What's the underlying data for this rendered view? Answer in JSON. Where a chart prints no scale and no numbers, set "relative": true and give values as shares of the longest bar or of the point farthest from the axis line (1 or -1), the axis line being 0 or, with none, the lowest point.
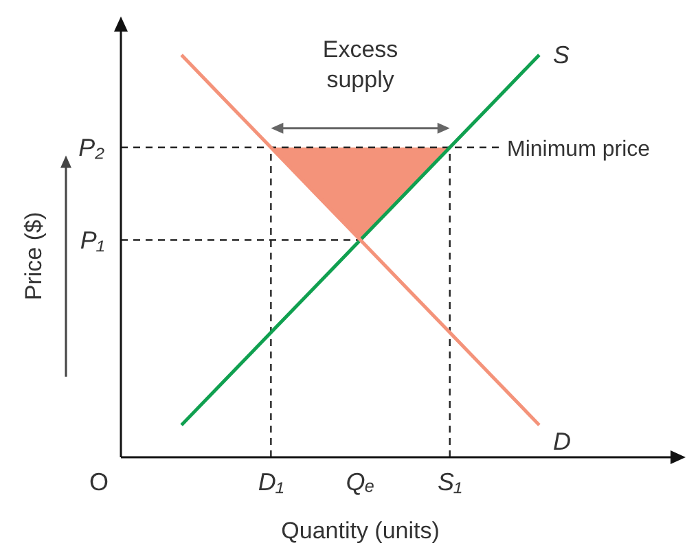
{
  "chart_data": {
    "type": "line",
    "xlabel": "Quantity (units)",
    "ylabel": "Price ($)",
    "relative": true,
    "categories": [
      null,
      null,
      null,
      "D₁",
      null,
      "Qₑ",
      null,
      "S₁",
      null,
      null,
      null,
      null,
      null
    ],
    "series": [
      {
        "name": "S",
        "color": "#10a050",
        "values": [
          null,
          0.08,
          0.195,
          0.31,
          0.425,
          0.54,
          0.655,
          0.77,
          0.885,
          1.0,
          null,
          null,
          null
        ]
      },
      {
        "name": "D",
        "color": "#f4937a",
        "values": [
          null,
          1.0,
          0.885,
          0.77,
          0.655,
          0.54,
          0.425,
          0.31,
          0.195,
          0.08,
          null,
          null,
          null
        ]
      }
    ],
    "ref_lines": [
      {
        "axis": "y",
        "value": 0.77,
        "label": "P₂",
        "line_style": "dashed",
        "color": "#222222"
      },
      {
        "axis": "y",
        "value": 0.54,
        "label": "P₁",
        "line_style": "dashed",
        "color": "#222222"
      },
      {
        "axis": "x",
        "value": "D₁",
        "line_style": "dashed",
        "color": "#222222"
      },
      {
        "axis": "x",
        "value": "S₁",
        "line_style": "dashed",
        "color": "#222222"
      }
    ],
    "annotations": [
      "Excess supply",
      "Minimum price",
      "O"
    ]
  }
}
